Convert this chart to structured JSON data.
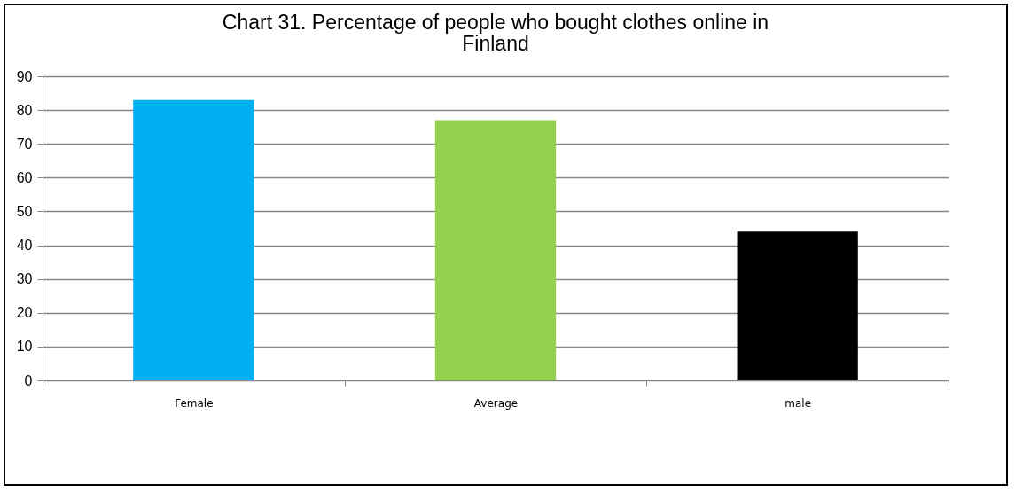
{
  "chart_data": {
    "type": "bar",
    "title": "Chart 31. Percentage of people  who bought clothes online in Finland",
    "categories": [
      "Female",
      "Average",
      "male"
    ],
    "values": [
      83,
      77,
      44
    ],
    "colors": [
      "#00b0f0",
      "#92d050",
      "#000000"
    ],
    "ylim": [
      0,
      90
    ],
    "yticks": [
      0,
      10,
      20,
      30,
      40,
      50,
      60,
      70,
      80,
      90
    ],
    "grid": "y"
  }
}
